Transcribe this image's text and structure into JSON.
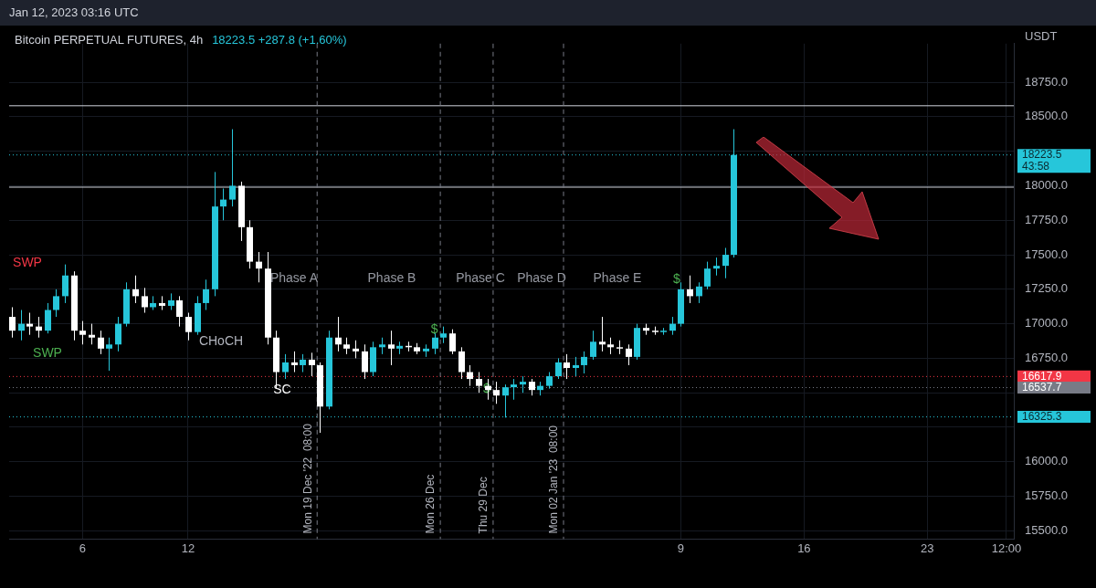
{
  "chart_data": {
    "type": "candlestick",
    "title": "Bitcoin PERPETUAL FUTURES, 4h",
    "subtitle": "18223.5  +287.8 (+1.60%)",
    "ylabel": "USDT",
    "x": [
      "2022-12-02T00:00",
      "2022-12-02T12:00",
      "2022-12-03T00:00",
      "2022-12-03T12:00",
      "2022-12-04T00:00",
      "2022-12-04T12:00",
      "2022-12-05T00:00",
      "2022-12-05T12:00",
      "2022-12-06T00:00",
      "2022-12-06T12:00",
      "2022-12-07T00:00",
      "2022-12-07T12:00",
      "2022-12-08T00:00",
      "2022-12-08T12:00",
      "2022-12-09T00:00",
      "2022-12-09T12:00",
      "2022-12-10T00:00",
      "2022-12-10T12:00",
      "2022-12-11T00:00",
      "2022-12-11T12:00",
      "2022-12-12T00:00",
      "2022-12-12T12:00",
      "2022-12-13T00:00",
      "2022-12-13T12:00",
      "2022-12-14T00:00",
      "2022-12-14T12:00",
      "2022-12-15T00:00",
      "2022-12-15T12:00",
      "2022-12-16T00:00",
      "2022-12-16T12:00",
      "2022-12-17T00:00",
      "2022-12-17T12:00",
      "2022-12-18T00:00",
      "2022-12-18T12:00",
      "2022-12-19T00:00",
      "2022-12-19T12:00",
      "2022-12-20T00:00",
      "2022-12-20T12:00",
      "2022-12-21T00:00",
      "2022-12-21T12:00",
      "2022-12-22T00:00",
      "2022-12-22T12:00",
      "2022-12-23T00:00",
      "2022-12-23T12:00",
      "2022-12-24T00:00",
      "2022-12-24T12:00",
      "2022-12-25T00:00",
      "2022-12-25T12:00",
      "2022-12-26T00:00",
      "2022-12-26T12:00",
      "2022-12-27T00:00",
      "2022-12-27T12:00",
      "2022-12-28T00:00",
      "2022-12-28T12:00",
      "2022-12-29T00:00",
      "2022-12-29T12:00",
      "2022-12-30T00:00",
      "2022-12-30T12:00",
      "2022-12-31T00:00",
      "2022-12-31T12:00",
      "2023-01-01T00:00",
      "2023-01-01T12:00",
      "2023-01-02T00:00",
      "2023-01-02T12:00",
      "2023-01-03T00:00",
      "2023-01-03T12:00",
      "2023-01-04T00:00",
      "2023-01-04T12:00",
      "2023-01-05T00:00",
      "2023-01-05T12:00",
      "2023-01-06T00:00",
      "2023-01-06T12:00",
      "2023-01-07T00:00",
      "2023-01-07T12:00",
      "2023-01-08T00:00",
      "2023-01-08T12:00",
      "2023-01-09T00:00",
      "2023-01-09T12:00",
      "2023-01-10T00:00",
      "2023-01-10T12:00",
      "2023-01-11T00:00",
      "2023-01-11T12:00",
      "2023-01-12T00:00"
    ],
    "ohlc": [
      [
        17050,
        17120,
        16900,
        16950
      ],
      [
        16950,
        17100,
        16880,
        17000
      ],
      [
        17000,
        17080,
        16920,
        16980
      ],
      [
        16980,
        17050,
        16900,
        16950
      ],
      [
        16950,
        17150,
        16930,
        17100
      ],
      [
        17100,
        17250,
        17050,
        17200
      ],
      [
        17200,
        17430,
        17150,
        17350
      ],
      [
        17350,
        17380,
        16880,
        16950
      ],
      [
        16950,
        17020,
        16850,
        16920
      ],
      [
        16920,
        17000,
        16850,
        16900
      ],
      [
        16900,
        16950,
        16780,
        16820
      ],
      [
        16820,
        16900,
        16660,
        16850
      ],
      [
        16850,
        17050,
        16800,
        17000
      ],
      [
        17000,
        17300,
        16980,
        17250
      ],
      [
        17250,
        17350,
        17150,
        17200
      ],
      [
        17200,
        17260,
        17080,
        17120
      ],
      [
        17120,
        17200,
        17100,
        17150
      ],
      [
        17150,
        17200,
        17100,
        17130
      ],
      [
        17130,
        17220,
        17100,
        17170
      ],
      [
        17170,
        17200,
        16980,
        17050
      ],
      [
        17050,
        17080,
        16880,
        16940
      ],
      [
        16940,
        17200,
        16920,
        17150
      ],
      [
        17150,
        17320,
        17100,
        17250
      ],
      [
        17250,
        18100,
        17200,
        17850
      ],
      [
        17850,
        17980,
        17750,
        17900
      ],
      [
        17900,
        18410,
        17850,
        18000
      ],
      [
        18000,
        18030,
        17600,
        17700
      ],
      [
        17700,
        17750,
        17400,
        17450
      ],
      [
        17450,
        17520,
        17300,
        17400
      ],
      [
        17400,
        17520,
        16850,
        16900
      ],
      [
        16900,
        16950,
        16530,
        16650
      ],
      [
        16650,
        16780,
        16600,
        16720
      ],
      [
        16720,
        16800,
        16650,
        16700
      ],
      [
        16700,
        16780,
        16650,
        16740
      ],
      [
        16740,
        16790,
        16620,
        16700
      ],
      [
        16700,
        16720,
        16210,
        16400
      ],
      [
        16400,
        16950,
        16380,
        16900
      ],
      [
        16900,
        17050,
        16800,
        16850
      ],
      [
        16850,
        16900,
        16780,
        16820
      ],
      [
        16820,
        16880,
        16750,
        16800
      ],
      [
        16800,
        16850,
        16600,
        16650
      ],
      [
        16650,
        16870,
        16620,
        16830
      ],
      [
        16830,
        16900,
        16780,
        16850
      ],
      [
        16850,
        16950,
        16700,
        16820
      ],
      [
        16820,
        16870,
        16780,
        16840
      ],
      [
        16840,
        16870,
        16800,
        16830
      ],
      [
        16830,
        16860,
        16780,
        16800
      ],
      [
        16800,
        16850,
        16760,
        16820
      ],
      [
        16820,
        16930,
        16780,
        16900
      ],
      [
        16900,
        16980,
        16860,
        16930
      ],
      [
        16930,
        16960,
        16780,
        16800
      ],
      [
        16800,
        16830,
        16600,
        16650
      ],
      [
        16650,
        16700,
        16550,
        16600
      ],
      [
        16600,
        16650,
        16500,
        16550
      ],
      [
        16550,
        16600,
        16450,
        16520
      ],
      [
        16520,
        16580,
        16420,
        16480
      ],
      [
        16480,
        16560,
        16320,
        16540
      ],
      [
        16540,
        16600,
        16450,
        16560
      ],
      [
        16560,
        16620,
        16500,
        16580
      ],
      [
        16580,
        16600,
        16480,
        16520
      ],
      [
        16520,
        16580,
        16480,
        16550
      ],
      [
        16550,
        16650,
        16530,
        16620
      ],
      [
        16620,
        16750,
        16600,
        16720
      ],
      [
        16720,
        16780,
        16600,
        16680
      ],
      [
        16680,
        16760,
        16620,
        16700
      ],
      [
        16700,
        16800,
        16640,
        16760
      ],
      [
        16760,
        16950,
        16740,
        16870
      ],
      [
        16870,
        17050,
        16800,
        16850
      ],
      [
        16850,
        16900,
        16780,
        16830
      ],
      [
        16830,
        16880,
        16780,
        16820
      ],
      [
        16820,
        16850,
        16700,
        16760
      ],
      [
        16760,
        17000,
        16740,
        16970
      ],
      [
        16970,
        17000,
        16920,
        16950
      ],
      [
        16950,
        16980,
        16920,
        16940
      ],
      [
        16940,
        16970,
        16920,
        16950
      ],
      [
        16950,
        17050,
        16920,
        17000
      ],
      [
        17000,
        17300,
        16980,
        17250
      ],
      [
        17250,
        17350,
        17150,
        17200
      ],
      [
        17200,
        17300,
        17150,
        17270
      ],
      [
        17270,
        17450,
        17250,
        17400
      ],
      [
        17400,
        17480,
        17350,
        17420
      ],
      [
        17420,
        17550,
        17330,
        17500
      ],
      [
        17500,
        18410,
        17480,
        18223.5
      ]
    ],
    "xlim": [
      "2022-12-01T20:00",
      "2023-01-27T22:00"
    ],
    "xticks": [
      {
        "value": "2022-12-06",
        "label": "6"
      },
      {
        "value": "2022-12-12",
        "label": "12"
      },
      {
        "value": "2023-01-09",
        "label": "9"
      },
      {
        "value": "2023-01-16",
        "label": "16"
      },
      {
        "value": "2023-01-23",
        "label": "23"
      },
      {
        "value": "2023-01-27T12:00",
        "label": "12:00"
      }
    ],
    "ylim": [
      15440,
      19030
    ],
    "yticks": [
      {
        "value": 15500,
        "label": "15500.0"
      },
      {
        "value": 15750,
        "label": "15750.0"
      },
      {
        "value": 16000,
        "label": "16000.0"
      },
      {
        "value": 16250,
        "label": null
      },
      {
        "value": 16500,
        "label": null
      },
      {
        "value": 16750,
        "label": "16750.0"
      },
      {
        "value": 17000,
        "label": "17000.0"
      },
      {
        "value": 17250,
        "label": "17250.0"
      },
      {
        "value": 17500,
        "label": "17500.0"
      },
      {
        "value": 17750,
        "label": "17750.0"
      },
      {
        "value": 18000,
        "label": "18000.0"
      },
      {
        "value": 18250,
        "label": null
      },
      {
        "value": 18500,
        "label": "18500.0"
      },
      {
        "value": 18750,
        "label": "18750.0"
      }
    ],
    "grid": true,
    "legend": false,
    "ref_lines": [
      {
        "axis": "y",
        "value": 18580,
        "color": "#d1d4dc",
        "line_style": "solid"
      },
      {
        "axis": "y",
        "value": 17990,
        "color": "#d1d4dc",
        "line_style": "solid"
      },
      {
        "axis": "y",
        "value": 18223.5,
        "label": "18223.5\n43:58",
        "color": "#26c6da",
        "line_style": "dotted"
      },
      {
        "axis": "y",
        "value": 16617.9,
        "label": "16617.9",
        "color": "#f23645",
        "line_style": "dotted"
      },
      {
        "axis": "y",
        "value": 16537.7,
        "label": "16537.7",
        "color": "#787b86",
        "line_style": "dotted"
      },
      {
        "axis": "y",
        "value": 16325.3,
        "label": "16325.3",
        "color": "#26c6da",
        "line_style": "dotted"
      },
      {
        "axis": "x",
        "value": "2022-12-19T08:00",
        "label": "Mon 19 Dec '22  08:00",
        "color": "#787b86",
        "line_style": "dashed"
      },
      {
        "axis": "x",
        "value": "2022-12-26T08:00",
        "label": "Mon 26 Dec",
        "color": "#787b86",
        "line_style": "dashed"
      },
      {
        "axis": "x",
        "value": "2022-12-29T08:00",
        "label": "Thu 29 Dec",
        "color": "#787b86",
        "line_style": "dashed"
      },
      {
        "axis": "x",
        "value": "2023-01-02T08:00",
        "label": "Mon 02 Jan '23  08:00",
        "color": "#787b86",
        "line_style": "dashed"
      }
    ],
    "annotations": [
      "Jan 12, 2023 03:16 UTC",
      "Phase A",
      "Phase B",
      "Phase C",
      "Phase D",
      "Phase E",
      "SWP",
      "SWP",
      "CHoCH",
      "SC",
      "$",
      "$",
      {
        "text": "$",
        "x": "2022-12-26T00:00",
        "y": 16960
      }
    ]
  }
}
